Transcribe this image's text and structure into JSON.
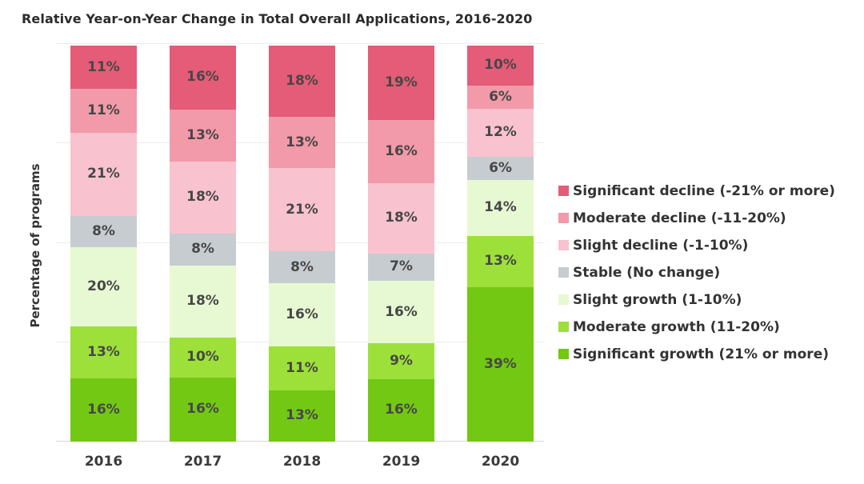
{
  "title": "Relative Year-on-Year Change in Total Overall Applications, 2016-2020",
  "chart_data": {
    "type": "bar",
    "stacked": true,
    "percent_stacked": true,
    "title": "Relative Year-on-Year Change in Total Overall Applications, 2016-2020",
    "xlabel": "",
    "ylabel": "Percentage of programs",
    "ylim": [
      0,
      100
    ],
    "unit": "%",
    "grid": true,
    "gridlines_percent": [
      0,
      25,
      50,
      75,
      100
    ],
    "legend_position": "right",
    "categories": [
      "2016",
      "2017",
      "2018",
      "2019",
      "2020"
    ],
    "series": [
      {
        "name": "Significant decline (-21% or more)",
        "color": "#e45c77",
        "values": [
          11,
          16,
          18,
          19,
          10
        ]
      },
      {
        "name": "Moderate decline (-11-20%)",
        "color": "#f29aa9",
        "values": [
          11,
          13,
          13,
          16,
          6
        ]
      },
      {
        "name": "Slight decline (-1-10%)",
        "color": "#f8c3ce",
        "values": [
          21,
          18,
          21,
          18,
          12
        ]
      },
      {
        "name": "Stable (No change)",
        "color": "#c7ccd1",
        "values": [
          8,
          8,
          8,
          7,
          6
        ]
      },
      {
        "name": "Slight growth (1-10%)",
        "color": "#e7f9d2",
        "values": [
          20,
          18,
          16,
          16,
          14
        ]
      },
      {
        "name": "Moderate growth (11-20%)",
        "color": "#9de03a",
        "values": [
          13,
          10,
          11,
          9,
          13
        ]
      },
      {
        "name": "Significant growth (21% or more)",
        "color": "#73c813",
        "values": [
          16,
          16,
          13,
          16,
          39
        ]
      }
    ],
    "label_color": "#474747"
  }
}
